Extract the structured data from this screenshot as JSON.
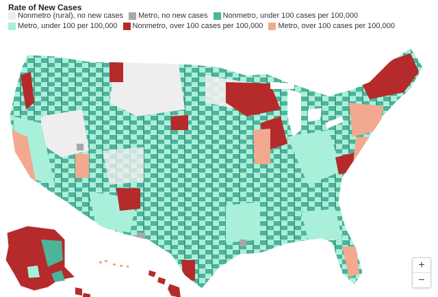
{
  "title": "Rate of New Cases",
  "legend": [
    {
      "label": "Nonmetro (rural), no new cases",
      "color": "#eeeeee",
      "icon": "swatch-light-gray"
    },
    {
      "label": "Metro, no new cases",
      "color": "#a8a8a8",
      "icon": "swatch-gray"
    },
    {
      "label": "Nonmetro, under 100 cases per 100,000",
      "color": "#4db39a",
      "icon": "swatch-teal"
    },
    {
      "label": "Metro, under 100 per 100,000",
      "color": "#a8f0da",
      "icon": "swatch-mint"
    },
    {
      "label": "Nonmetro, over 100 cases per 100,000",
      "color": "#b52a2a",
      "icon": "swatch-dark-red"
    },
    {
      "label": "Metro, over 100 cases per 100,000",
      "color": "#f2a98f",
      "icon": "swatch-salmon"
    }
  ],
  "zoom": {
    "in_label": "+",
    "out_label": "−"
  }
}
